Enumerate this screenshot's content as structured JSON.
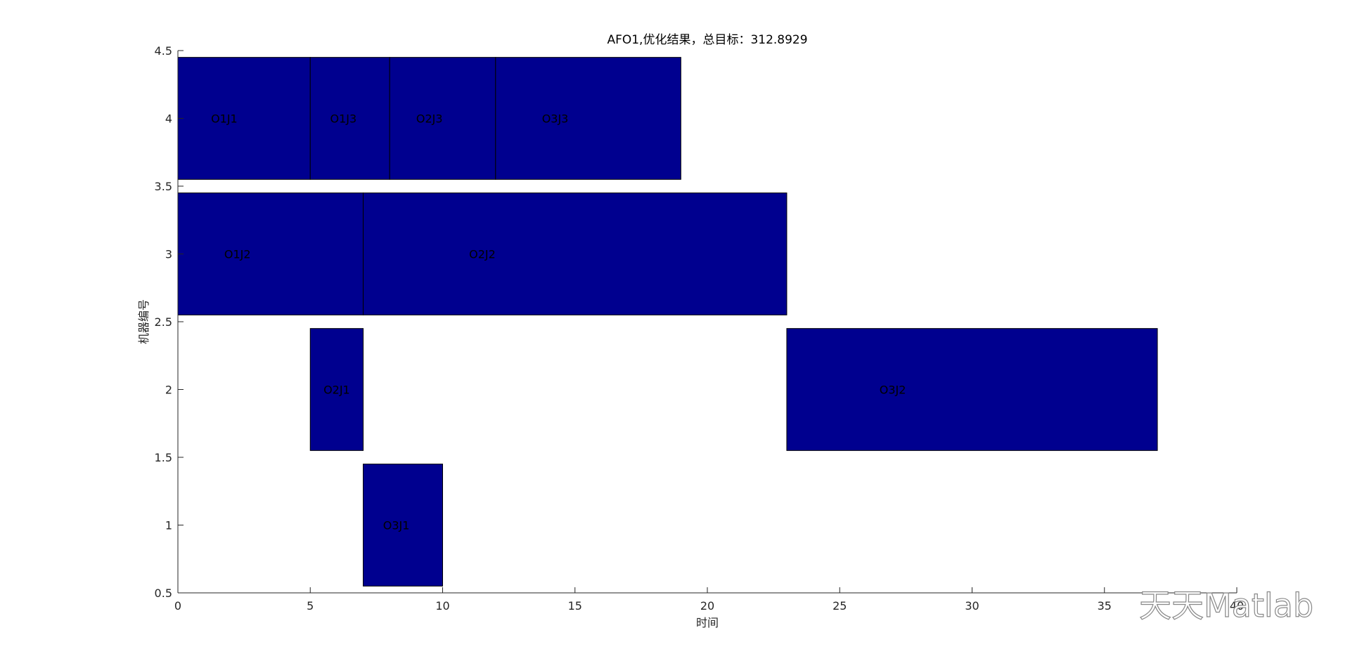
{
  "chart_data": {
    "type": "gantt",
    "title": "AFO1,优化结果，总目标：312.8929",
    "xlabel": "时间",
    "ylabel": "机器编号",
    "xlim": [
      0,
      40
    ],
    "xticks": [
      0,
      5,
      10,
      15,
      20,
      25,
      30,
      35,
      40
    ],
    "ylim": [
      0.5,
      4.5
    ],
    "yticks": [
      0.5,
      1,
      1.5,
      2,
      2.5,
      3,
      3.5,
      4,
      4.5
    ],
    "bar_height": 0.9,
    "color": "#00008f",
    "tasks": [
      {
        "label": "O1J1",
        "machine": 4,
        "start": 0,
        "end": 5
      },
      {
        "label": "O1J3",
        "machine": 4,
        "start": 5,
        "end": 8
      },
      {
        "label": "O2J3",
        "machine": 4,
        "start": 8,
        "end": 12
      },
      {
        "label": "O3J3",
        "machine": 4,
        "start": 12,
        "end": 19
      },
      {
        "label": "O1J2",
        "machine": 3,
        "start": 0,
        "end": 7
      },
      {
        "label": "O2J2",
        "machine": 3,
        "start": 7,
        "end": 23
      },
      {
        "label": "O2J1",
        "machine": 2,
        "start": 5,
        "end": 7
      },
      {
        "label": "O3J2",
        "machine": 2,
        "start": 23,
        "end": 37
      },
      {
        "label": "O3J1",
        "machine": 1,
        "start": 7,
        "end": 10
      }
    ],
    "watermark": "天天Matlab"
  }
}
